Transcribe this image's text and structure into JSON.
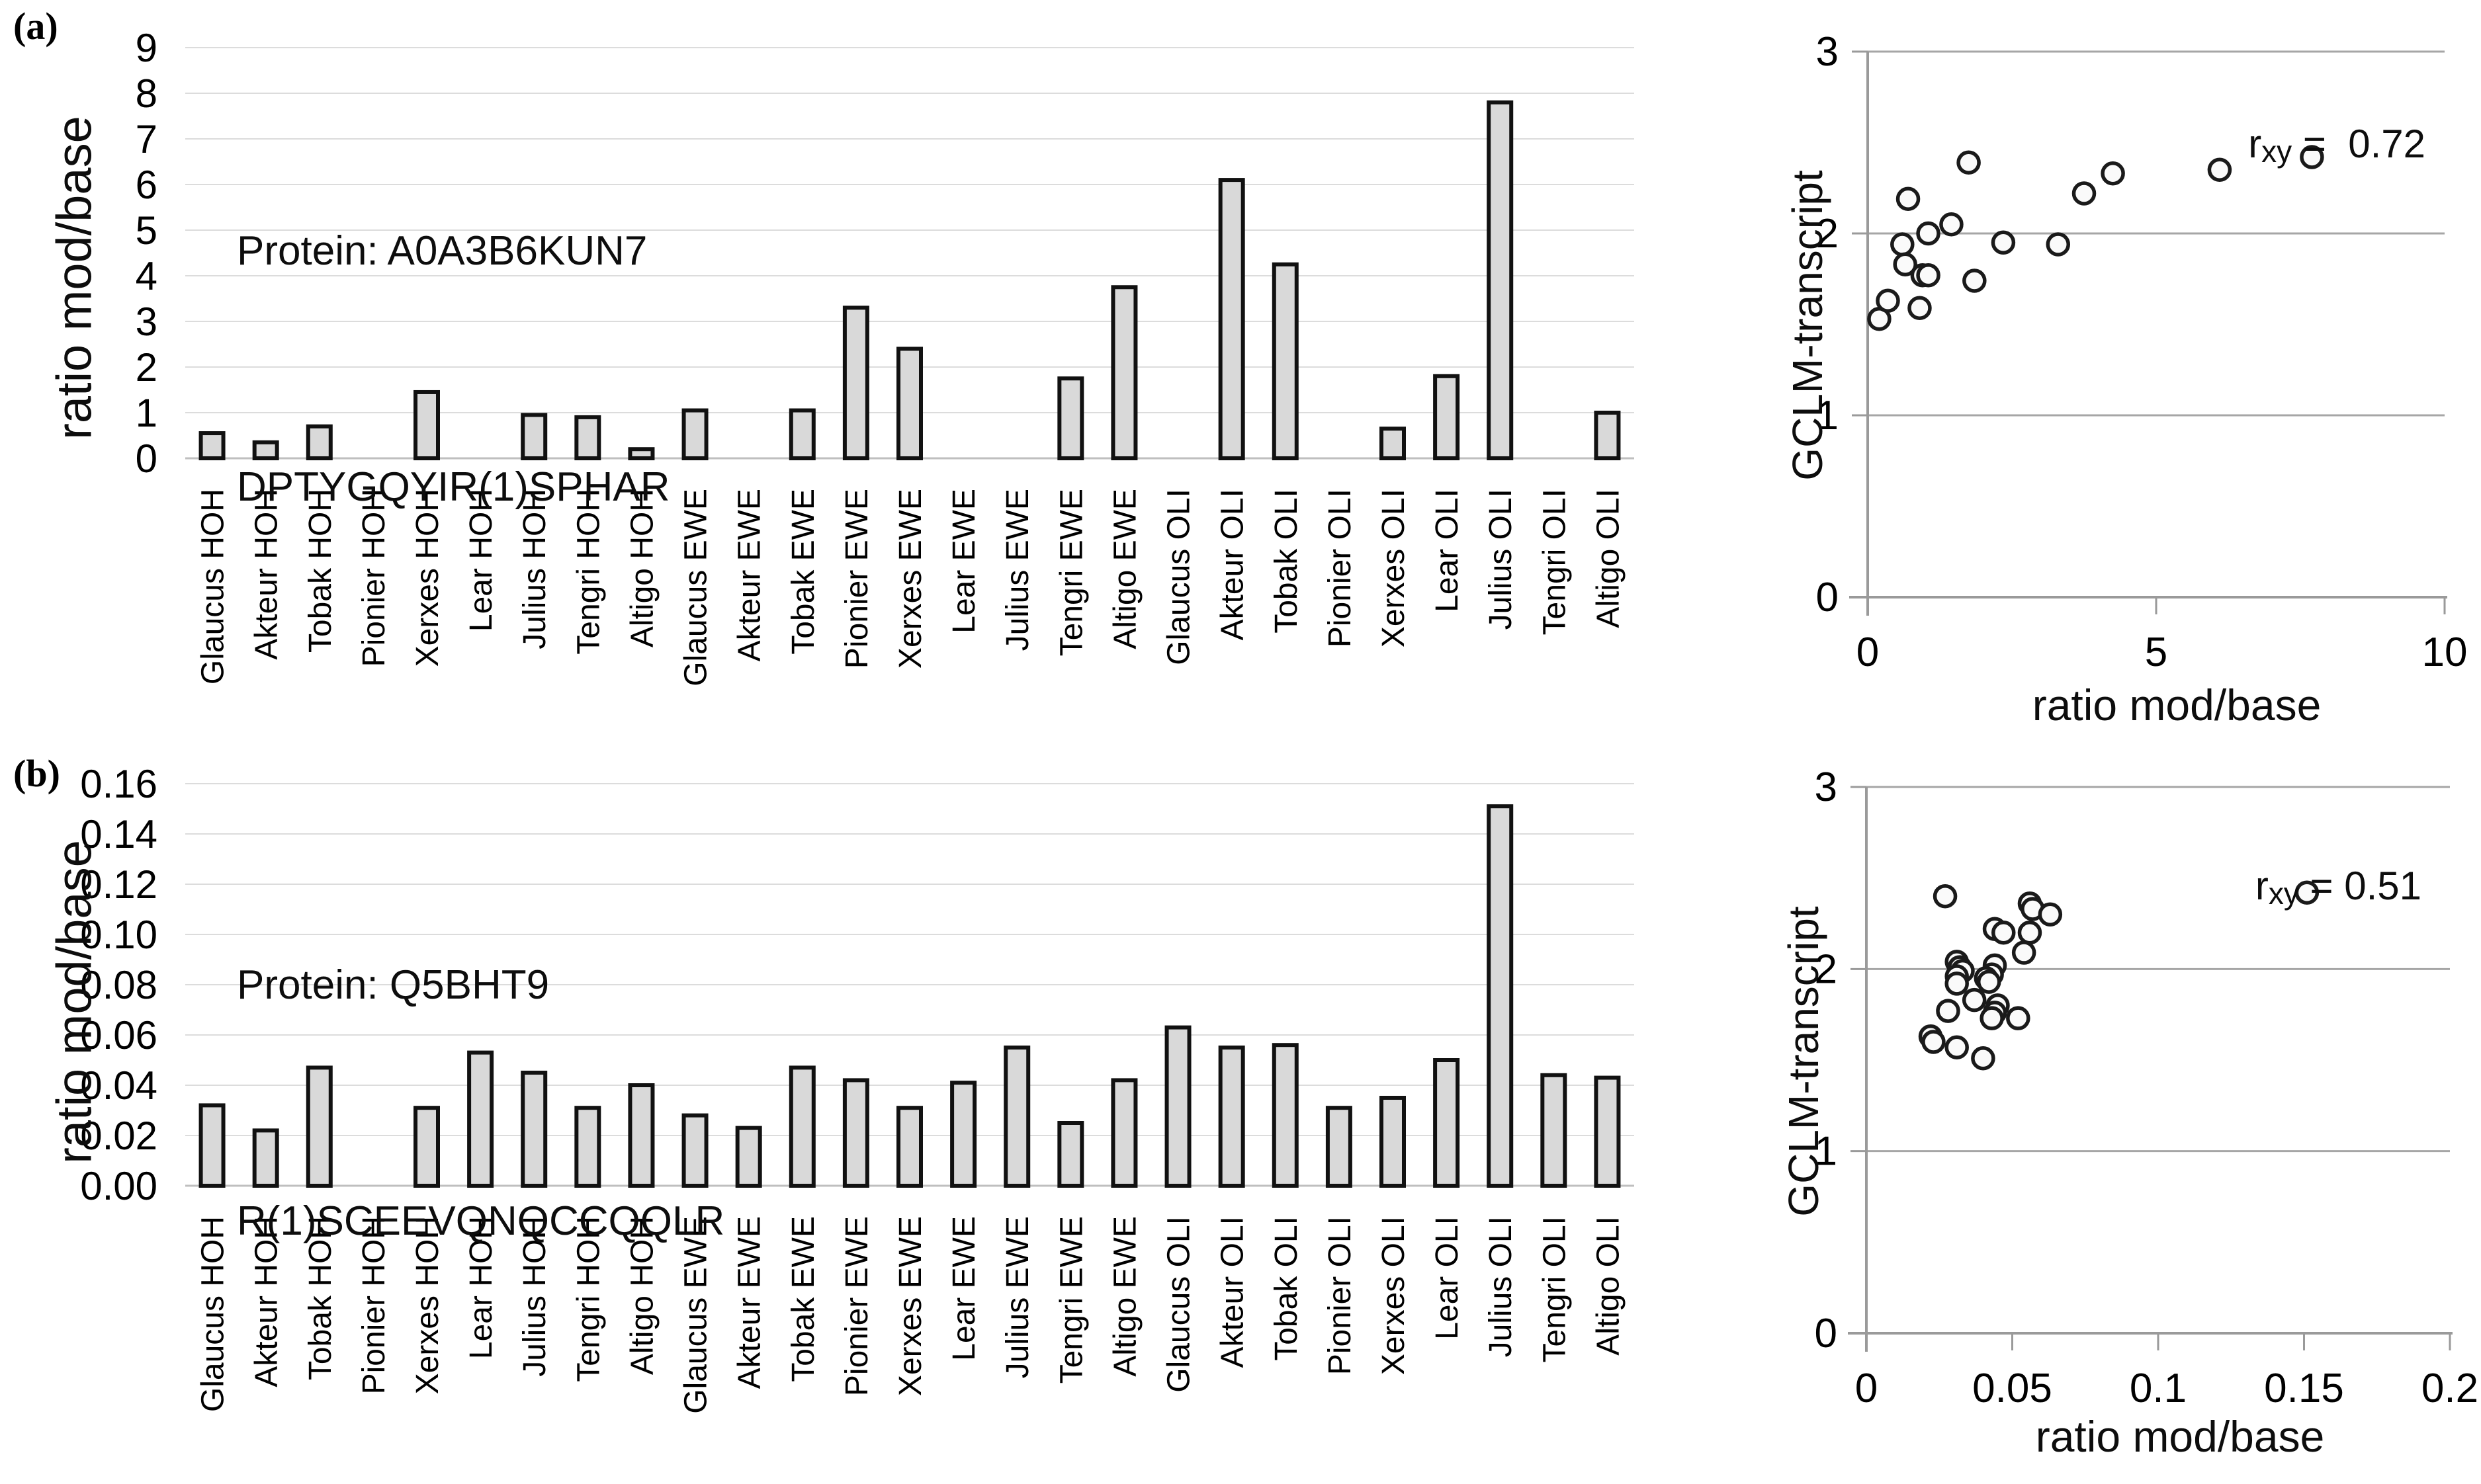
{
  "figure": {
    "panels": [
      {
        "marker": "(a)"
      },
      {
        "marker": "(b)"
      }
    ],
    "colors": {
      "background": "#ffffff",
      "bar_fill": "#d9d9d9",
      "bar_stroke": "#111111",
      "bar_grid": "#dcdcdc",
      "bar_axis": "#bfbfbf",
      "scatter_grid": "#a6a6a6",
      "scatter_axis": "#9a9a9a",
      "point_fill": "#fafafa",
      "point_stroke": "#1a1a1a",
      "text": "#000000"
    }
  },
  "chart_data": [
    {
      "id": "bar-a",
      "type": "bar",
      "panel": "(a)",
      "title": "Protein: A0A3B6KUN7",
      "subtitle": "DPTYGQYIR(1)SPHAR",
      "ylabel": "ratio mod/base",
      "xlabel": "",
      "ylim": [
        0,
        9
      ],
      "yticks": [
        "0",
        "1",
        "2",
        "3",
        "4",
        "5",
        "6",
        "7",
        "8",
        "9"
      ],
      "grid": true,
      "categories": [
        "Glaucus HOH",
        "Akteur HOH",
        "Tobak HOH",
        "Pionier HOH",
        "Xerxes HOH",
        "Lear HOH",
        "Julius HOH",
        "Tengri HOH",
        "Altigo HOH",
        "Glaucus EWE",
        "Akteur EWE",
        "Tobak EWE",
        "Pionier EWE",
        "Xerxes EWE",
        "Lear EWE",
        "Julius EWE",
        "Tengri EWE",
        "Altigo EWE",
        "Glaucus OLI",
        "Akteur OLI",
        "Tobak OLI",
        "Pionier OLI",
        "Xerxes OLI",
        "Lear OLI",
        "Julius OLI",
        "Tengri OLI",
        "Altigo OLI"
      ],
      "values": [
        0.55,
        0.35,
        0.7,
        0,
        1.45,
        0,
        0.95,
        0.9,
        0.2,
        1.05,
        0,
        1.05,
        3.3,
        2.4,
        0,
        0,
        1.75,
        3.75,
        0,
        6.1,
        4.25,
        0,
        0.65,
        1.8,
        7.8,
        0,
        1.0
      ]
    },
    {
      "id": "scatter-a",
      "type": "scatter",
      "panel": "(a)",
      "xlabel": "ratio mod/base",
      "ylabel": "GCLM-transcript",
      "annotation": {
        "prefix": "r",
        "sub": "xy",
        "rest": " =  0.72"
      },
      "xlim": [
        0,
        10
      ],
      "xticks": [
        "0",
        "5",
        "10"
      ],
      "ylim": [
        0,
        3
      ],
      "yticks": [
        "0",
        "1",
        "2",
        "3"
      ],
      "legend": "none",
      "points": [
        [
          0.2,
          1.53
        ],
        [
          0.35,
          1.63
        ],
        [
          0.6,
          1.94
        ],
        [
          0.65,
          1.83
        ],
        [
          0.7,
          2.19
        ],
        [
          0.9,
          1.59
        ],
        [
          0.95,
          1.77
        ],
        [
          1.05,
          1.77
        ],
        [
          1.05,
          2.0
        ],
        [
          1.45,
          2.05
        ],
        [
          1.75,
          2.39
        ],
        [
          1.85,
          1.74
        ],
        [
          2.35,
          1.95
        ],
        [
          3.3,
          1.94
        ],
        [
          3.75,
          2.22
        ],
        [
          4.25,
          2.33
        ],
        [
          6.1,
          2.35
        ],
        [
          7.7,
          2.42
        ]
      ]
    },
    {
      "id": "bar-b",
      "type": "bar",
      "panel": "(b)",
      "title": "Protein: Q5BHT9",
      "subtitle": "R(1)SCEEVQNQCCQQLR",
      "ylabel": "ratio mod/base",
      "xlabel": "",
      "ylim": [
        0,
        0.16
      ],
      "yticks": [
        "0.00",
        "0.02",
        "0.04",
        "0.06",
        "0.08",
        "0.10",
        "0.12",
        "0.14",
        "0.16"
      ],
      "grid": true,
      "categories": [
        "Glaucus HOH",
        "Akteur HOH",
        "Tobak HOH",
        "Pionier HOH",
        "Xerxes HOH",
        "Lear HOH",
        "Julius HOH",
        "Tengri HOH",
        "Altigo HOH",
        "Glaucus EWE",
        "Akteur EWE",
        "Tobak EWE",
        "Pionier EWE",
        "Xerxes EWE",
        "Lear EWE",
        "Julius EWE",
        "Tengri EWE",
        "Altigo EWE",
        "Glaucus OLI",
        "Akteur OLI",
        "Tobak OLI",
        "Pionier OLI",
        "Xerxes OLI",
        "Lear OLI",
        "Julius OLI",
        "Tengri OLI",
        "Altigo OLI"
      ],
      "values": [
        0.032,
        0.022,
        0.047,
        0,
        0.031,
        0.053,
        0.045,
        0.031,
        0.04,
        0.028,
        0.023,
        0.047,
        0.042,
        0.031,
        0.041,
        0.055,
        0.025,
        0.042,
        0.063,
        0.055,
        0.056,
        0.031,
        0.035,
        0.05,
        0.151,
        0.044,
        0.043
      ]
    },
    {
      "id": "scatter-b",
      "type": "scatter",
      "panel": "(b)",
      "xlabel": "ratio mod/base",
      "ylabel": "GCLM-transcript",
      "annotation": {
        "prefix": "r",
        "sub": "xy",
        "rest": " = 0.51"
      },
      "xlim": [
        0,
        0.2
      ],
      "xticks": [
        "0",
        "0.05",
        "0.1",
        "0.15",
        "0.2"
      ],
      "ylim": [
        0,
        3
      ],
      "yticks": [
        "0",
        "1",
        "2",
        "3"
      ],
      "legend": "none",
      "points": [
        [
          0.027,
          2.4
        ],
        [
          0.056,
          2.36
        ],
        [
          0.057,
          2.33
        ],
        [
          0.063,
          2.3
        ],
        [
          0.044,
          2.22
        ],
        [
          0.047,
          2.2
        ],
        [
          0.056,
          2.2
        ],
        [
          0.054,
          2.09
        ],
        [
          0.031,
          2.04
        ],
        [
          0.032,
          2.01
        ],
        [
          0.033,
          1.99
        ],
        [
          0.044,
          2.02
        ],
        [
          0.043,
          1.97
        ],
        [
          0.041,
          1.95
        ],
        [
          0.042,
          1.93
        ],
        [
          0.031,
          1.96
        ],
        [
          0.031,
          1.92
        ],
        [
          0.037,
          1.83
        ],
        [
          0.045,
          1.8
        ],
        [
          0.028,
          1.77
        ],
        [
          0.044,
          1.76
        ],
        [
          0.043,
          1.73
        ],
        [
          0.052,
          1.73
        ],
        [
          0.022,
          1.63
        ],
        [
          0.023,
          1.6
        ],
        [
          0.031,
          1.57
        ],
        [
          0.04,
          1.51
        ],
        [
          0.151,
          2.42
        ]
      ]
    }
  ]
}
